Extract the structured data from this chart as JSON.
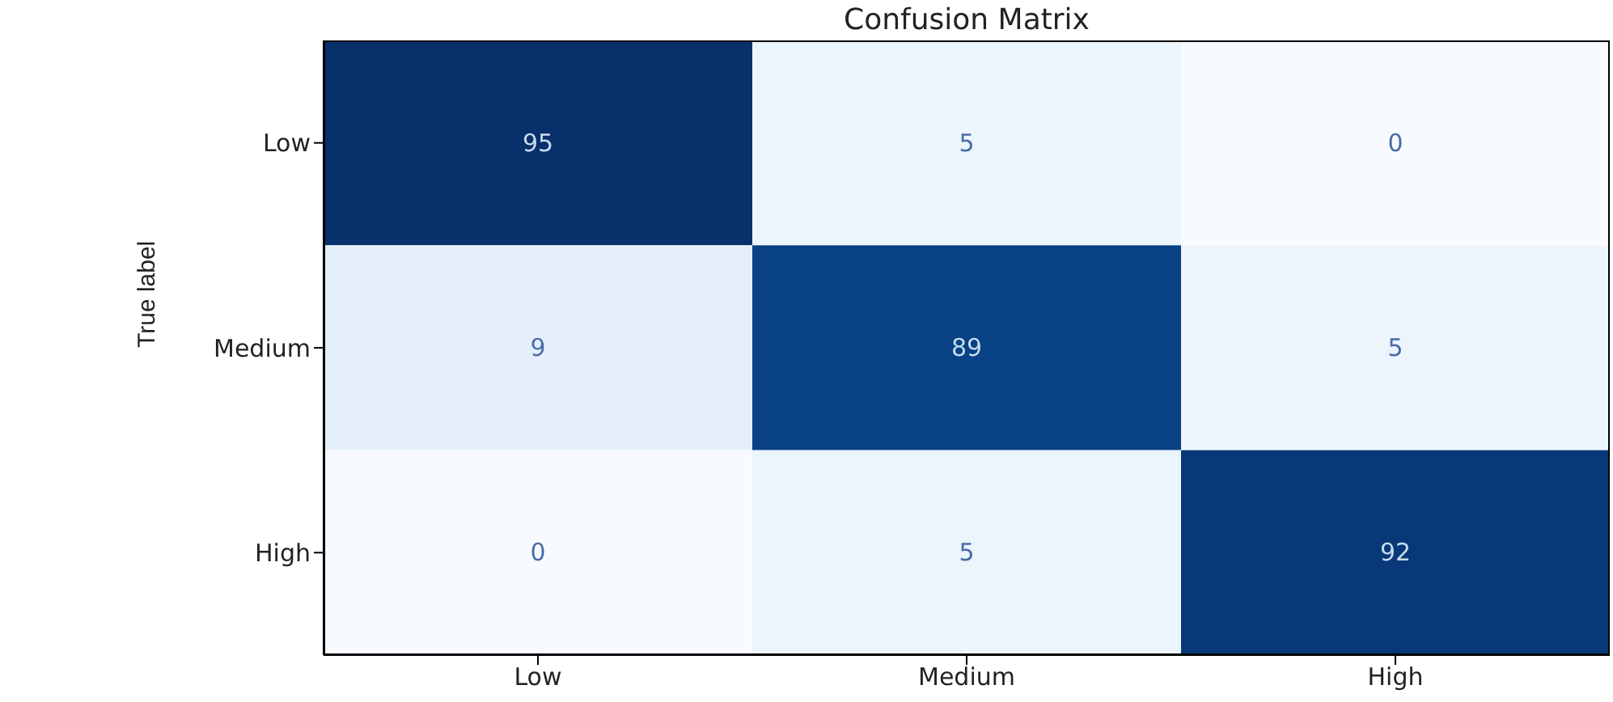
{
  "chart_data": {
    "type": "heatmap",
    "title": "Confusion Matrix",
    "ylabel": "True label",
    "categories": [
      "Low",
      "Medium",
      "High"
    ],
    "y_categories": [
      "Low",
      "Medium",
      "High"
    ],
    "cells": [
      [
        95,
        5,
        0
      ],
      [
        9,
        89,
        5
      ],
      [
        0,
        5,
        92
      ]
    ],
    "data_labels": true
  }
}
